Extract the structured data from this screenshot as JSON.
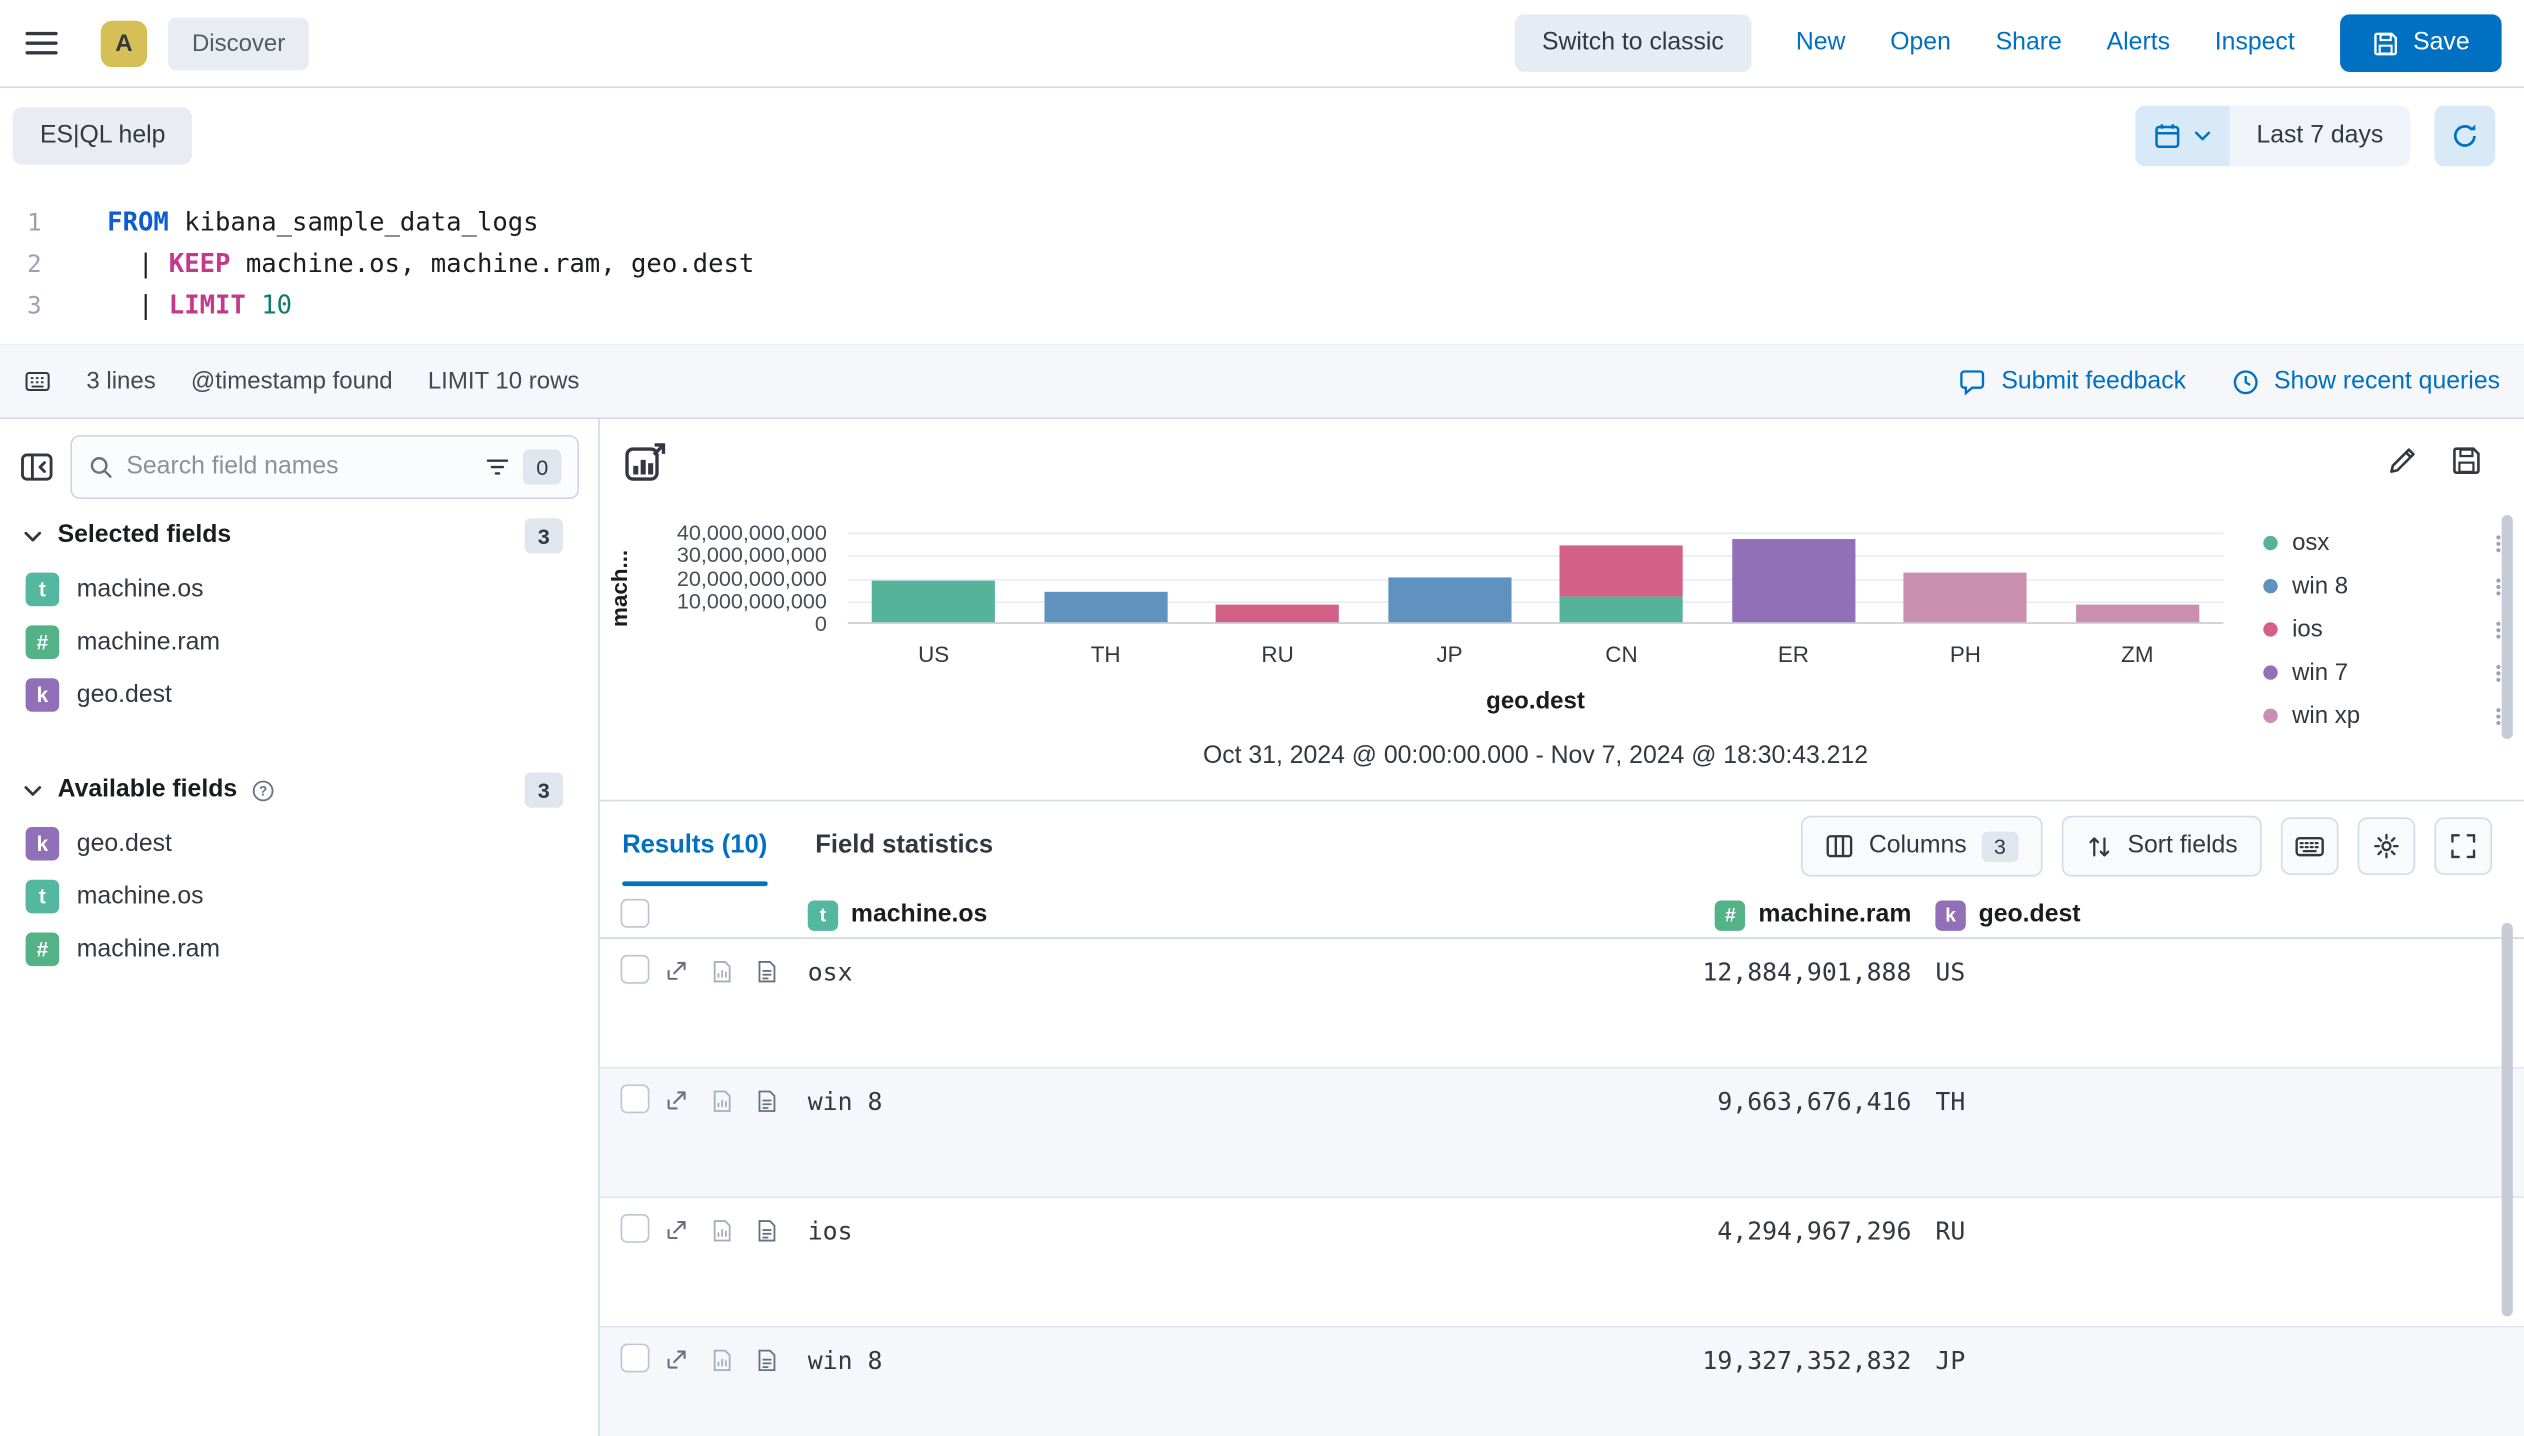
{
  "header": {
    "avatar": "A",
    "breadcrumb": "Discover",
    "actions": {
      "switch_classic": "Switch to classic",
      "new": "New",
      "open": "Open",
      "share": "Share",
      "alerts": "Alerts",
      "inspect": "Inspect",
      "save": "Save"
    }
  },
  "query_bar": {
    "esql_help": "ES|QL help",
    "time_range": "Last 7 days"
  },
  "editor": {
    "lines": [
      {
        "number": "1",
        "tokens": [
          {
            "t": "keyword",
            "v": "FROM"
          },
          {
            "t": "plain",
            "v": " kibana_sample_data_logs"
          }
        ]
      },
      {
        "number": "2",
        "tokens": [
          {
            "t": "plain",
            "v": "  | "
          },
          {
            "t": "command",
            "v": "KEEP"
          },
          {
            "t": "plain",
            "v": " machine.os, machine.ram, geo.dest"
          }
        ]
      },
      {
        "number": "3",
        "tokens": [
          {
            "t": "plain",
            "v": "  | "
          },
          {
            "t": "command",
            "v": "LIMIT"
          },
          {
            "t": "plain",
            "v": " "
          },
          {
            "t": "number",
            "v": "10"
          }
        ]
      }
    ],
    "footer": {
      "lines_count": "3 lines",
      "timestamp_note": "@timestamp found",
      "limit_note": "LIMIT 10 rows",
      "feedback": "Submit feedback",
      "recent_queries": "Show recent queries"
    }
  },
  "sidebar": {
    "search_placeholder": "Search field names",
    "filter_count": "0",
    "selected": {
      "label": "Selected fields",
      "count": "3",
      "items": [
        {
          "type": "t",
          "name": "machine.os"
        },
        {
          "type": "#",
          "name": "machine.ram"
        },
        {
          "type": "k",
          "name": "geo.dest"
        }
      ]
    },
    "available": {
      "label": "Available fields",
      "count": "3",
      "items": [
        {
          "type": "k",
          "name": "geo.dest"
        },
        {
          "type": "t",
          "name": "machine.os"
        },
        {
          "type": "#",
          "name": "machine.ram"
        }
      ]
    }
  },
  "chart": {
    "time_range_label": "Oct 31, 2024 @ 00:00:00.000 - Nov 7, 2024 @ 18:30:43.212"
  },
  "chart_data": {
    "type": "bar",
    "stacked": true,
    "title": "",
    "xlabel": "geo.dest",
    "ylabel": "mach...",
    "categories": [
      "US",
      "TH",
      "RU",
      "JP",
      "CN",
      "ER",
      "PH",
      "ZM"
    ],
    "series": [
      {
        "name": "osx",
        "color": "#54b399",
        "values": [
          18500000000,
          0,
          0,
          0,
          11000000000,
          0,
          0,
          0
        ]
      },
      {
        "name": "win 8",
        "color": "#6092c0",
        "values": [
          0,
          13500000000,
          0,
          19800000000,
          0,
          0,
          0,
          0
        ]
      },
      {
        "name": "ios",
        "color": "#d36086",
        "values": [
          0,
          0,
          7500000000,
          0,
          23000000000,
          0,
          0,
          0
        ]
      },
      {
        "name": "win 7",
        "color": "#9170b8",
        "values": [
          0,
          0,
          0,
          0,
          0,
          36500000000,
          0,
          0
        ]
      },
      {
        "name": "win xp",
        "color": "#ca8eae",
        "values": [
          0,
          0,
          0,
          0,
          0,
          0,
          22000000000,
          7500000000
        ]
      }
    ],
    "ylim": [
      0,
      40000000000
    ],
    "yticks": [
      "40,000,000,000",
      "30,000,000,000",
      "20,000,000,000",
      "10,000,000,000",
      "0"
    ],
    "grid": true,
    "legend_position": "right"
  },
  "results": {
    "tabs": [
      {
        "label": "Results (10)"
      },
      {
        "label": "Field statistics"
      }
    ],
    "columns_button": "Columns",
    "columns_count": "3",
    "sort_button": "Sort fields",
    "table": {
      "columns": [
        {
          "type": "t",
          "name": "machine.os"
        },
        {
          "type": "#",
          "name": "machine.ram"
        },
        {
          "type": "k",
          "name": "geo.dest"
        }
      ],
      "rows": [
        {
          "machine_os": "osx",
          "machine_ram": "12,884,901,888",
          "geo_dest": "US"
        },
        {
          "machine_os": "win 8",
          "machine_ram": "9,663,676,416",
          "geo_dest": "TH"
        },
        {
          "machine_os": "ios",
          "machine_ram": "4,294,967,296",
          "geo_dest": "RU"
        },
        {
          "machine_os": "win 8",
          "machine_ram": "19,327,352,832",
          "geo_dest": "JP"
        }
      ]
    }
  },
  "colors": {
    "accent": "#0071c2",
    "link": "#0071c2",
    "save_button": "#0071c2",
    "token_text": "#54b8a0",
    "token_number": "#53b287",
    "token_keyword": "#9170b8",
    "row_stripe": "#f5f7fb",
    "avatar": "#d6bf57"
  },
  "icons": {
    "menu-icon": "hamburger",
    "save-icon": "floppy-disk",
    "calendar-icon": "calendar",
    "chevron-down-icon": "chevron",
    "refresh-icon": "circular-arrow",
    "search-icon": "magnifier",
    "filter-icon": "filter-lines",
    "collapse-sidebar-icon": "panel-arrow-left",
    "help-icon": "question-circle",
    "feedback-icon": "speech-bubble",
    "recent-queries-icon": "clock",
    "edit-visualization-icon": "chart-box-arrow",
    "pencil-icon": "pencil",
    "columns-icon": "table-columns",
    "sort-icon": "up-down-arrows",
    "keyboard-icon": "keyboard",
    "gear-icon": "gear",
    "fullscreen-icon": "corner-brackets",
    "expand-row-icon": "diagonal-arrow",
    "legend-actions-icon": "vertical-dots"
  }
}
